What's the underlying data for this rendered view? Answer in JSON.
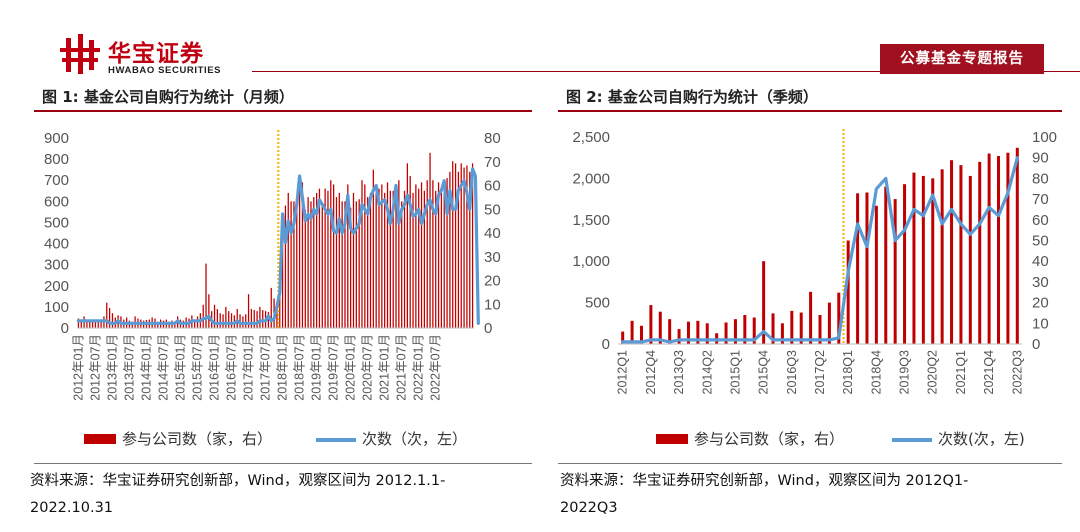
{
  "header": {
    "logo_cn": "华宝证券",
    "logo_en": "HWABAO SECURITIES",
    "report_tag": "公募基金专题报告",
    "brand_color": "#c00010"
  },
  "figures": [
    {
      "title": "图 1:  基金公司自购行为统计（月频）",
      "source_line1": "资料来源：华宝证券研究创新部，Wind，观察区间为 2012.1.1-",
      "source_line2": "2022.10.31"
    },
    {
      "title": "图 2:  基金公司自购行为统计（季频）",
      "source_line1": "资料来源：华宝证券研究创新部，Wind，观察区间为 2012Q1-",
      "source_line2": "2022Q3"
    }
  ],
  "chart_data": [
    {
      "type": "bar",
      "x_tick_labels": [
        "2012年01月",
        "2012年07月",
        "2013年01月",
        "2013年07月",
        "2014年01月",
        "2014年07月",
        "2015年01月",
        "2015年07月",
        "2016年01月",
        "2016年07月",
        "2017年01月",
        "2017年07月",
        "2018年01月",
        "2018年07月",
        "2019年01月",
        "2019年07月",
        "2020年01月",
        "2020年07月",
        "2021年01月",
        "2021年07月",
        "2022年01月",
        "2022年07月"
      ],
      "left_ticks": [
        "900",
        "800",
        "700",
        "600",
        "500",
        "400",
        "300",
        "200",
        "100",
        "0"
      ],
      "right_ticks": [
        "80",
        "70",
        "60",
        "50",
        "40",
        "30",
        "20",
        "10",
        "0"
      ],
      "ylim_left": [
        0,
        900
      ],
      "ylim_right": [
        0,
        80
      ],
      "reference_line_index": 71,
      "series": [
        {
          "name": "参与公司数（家，右）",
          "type": "bar",
          "axis": "left",
          "color": "#c00000",
          "values": [
            45,
            40,
            55,
            35,
            40,
            30,
            38,
            40,
            35,
            55,
            120,
            95,
            70,
            50,
            60,
            55,
            40,
            50,
            35,
            30,
            55,
            45,
            40,
            35,
            38,
            40,
            50,
            45,
            30,
            40,
            35,
            40,
            30,
            35,
            30,
            55,
            40,
            35,
            50,
            45,
            60,
            40,
            55,
            70,
            110,
            305,
            160,
            80,
            110,
            90,
            70,
            65,
            100,
            80,
            70,
            60,
            90,
            65,
            55,
            65,
            160,
            90,
            85,
            80,
            100,
            85,
            80,
            75,
            190,
            140,
            120,
            260,
            530,
            580,
            640,
            600,
            600,
            620,
            700,
            690,
            560,
            620,
            600,
            620,
            640,
            660,
            590,
            660,
            650,
            700,
            680,
            620,
            640,
            600,
            600,
            680,
            570,
            640,
            600,
            610,
            700,
            680,
            620,
            640,
            750,
            640,
            660,
            680,
            640,
            690,
            650,
            650,
            680,
            700,
            600,
            650,
            780,
            720,
            640,
            680,
            660,
            690,
            650,
            700,
            830,
            700,
            650,
            690,
            660,
            690,
            710,
            740,
            790,
            780,
            740,
            780,
            760,
            770,
            740,
            780
          ]
        },
        {
          "name": "次数（次，左）",
          "type": "line",
          "axis": "right",
          "color": "#5b9bd5",
          "values": [
            3,
            3,
            3,
            3,
            3,
            3,
            3,
            3,
            3,
            3,
            3,
            2,
            2,
            2,
            3,
            2,
            2,
            2,
            2,
            2,
            2,
            2,
            2,
            2,
            2,
            2,
            2,
            2,
            2,
            2,
            2,
            2,
            2,
            2,
            2,
            3,
            2,
            2,
            2,
            2,
            3,
            3,
            3,
            3,
            4,
            4,
            5,
            3,
            2,
            2,
            2,
            2,
            2,
            2,
            2,
            2,
            3,
            2,
            2,
            2,
            2,
            2,
            2,
            2,
            3,
            3,
            3,
            5,
            3,
            4,
            9,
            15,
            48,
            36,
            45,
            40,
            44,
            52,
            64,
            55,
            45,
            48,
            46,
            50,
            48,
            54,
            52,
            50,
            48,
            50,
            41,
            40,
            46,
            40,
            44,
            56,
            42,
            40,
            42,
            44,
            52,
            50,
            48,
            55,
            58,
            60,
            52,
            53,
            54,
            50,
            44,
            50,
            60,
            44,
            50,
            52,
            56,
            52,
            47,
            48,
            50,
            44,
            48,
            52,
            54,
            50,
            48,
            56,
            58,
            62,
            48,
            58,
            50,
            50,
            58,
            60,
            62,
            57,
            50,
            67,
            64,
            2
          ]
        }
      ]
    },
    {
      "type": "bar",
      "categories": [
        "2012Q1",
        "2012Q2",
        "2012Q3",
        "2012Q4",
        "2013Q1",
        "2013Q2",
        "2013Q3",
        "2013Q4",
        "2014Q1",
        "2014Q2",
        "2014Q3",
        "2014Q4",
        "2015Q1",
        "2015Q2",
        "2015Q3",
        "2015Q4",
        "2016Q1",
        "2016Q2",
        "2016Q3",
        "2016Q4",
        "2017Q1",
        "2017Q2",
        "2017Q3",
        "2017Q4",
        "2018Q1",
        "2018Q2",
        "2018Q3",
        "2018Q4",
        "2019Q1",
        "2019Q2",
        "2019Q3",
        "2019Q4",
        "2020Q1",
        "2020Q2",
        "2020Q3",
        "2020Q4",
        "2021Q1",
        "2021Q2",
        "2021Q3",
        "2021Q4",
        "2022Q1",
        "2022Q2",
        "2022Q3"
      ],
      "x_tick_labels": [
        "2012Q1",
        "2012Q4",
        "2013Q3",
        "2014Q2",
        "2015Q1",
        "2015Q4",
        "2016Q3",
        "2017Q2",
        "2018Q1",
        "2018Q4",
        "2019Q3",
        "2020Q2",
        "2021Q1",
        "2021Q4",
        "2022Q3"
      ],
      "left_ticks": [
        "2,500",
        "2,000",
        "1,500",
        "1,000",
        "500",
        "0"
      ],
      "right_ticks": [
        "100",
        "90",
        "80",
        "70",
        "60",
        "50",
        "40",
        "30",
        "20",
        "10",
        "0"
      ],
      "ylim_left": [
        0,
        2500
      ],
      "ylim_right": [
        0,
        100
      ],
      "reference_line_index": 24,
      "series": [
        {
          "name": "参与公司数（家，右）",
          "type": "bar",
          "axis": "left",
          "color": "#c00000",
          "values": [
            150,
            280,
            220,
            470,
            390,
            300,
            180,
            270,
            280,
            250,
            130,
            260,
            300,
            350,
            320,
            1000,
            370,
            250,
            400,
            380,
            630,
            350,
            500,
            620,
            1250,
            1820,
            1830,
            1670,
            1900,
            1750,
            1930,
            2070,
            2030,
            2000,
            2110,
            2220,
            2160,
            2030,
            2200,
            2300,
            2270,
            2310,
            2370
          ]
        },
        {
          "name": "次数(次，左)",
          "type": "line",
          "axis": "right",
          "color": "#5b9bd5",
          "values": [
            1,
            1,
            1,
            2,
            2,
            1,
            2,
            2,
            2,
            2,
            2,
            2,
            2,
            2,
            2,
            6,
            2,
            2,
            2,
            2,
            2,
            2,
            2,
            3,
            35,
            58,
            47,
            75,
            80,
            50,
            55,
            65,
            62,
            72,
            58,
            65,
            58,
            53,
            58,
            66,
            62,
            73,
            90
          ]
        }
      ]
    }
  ]
}
